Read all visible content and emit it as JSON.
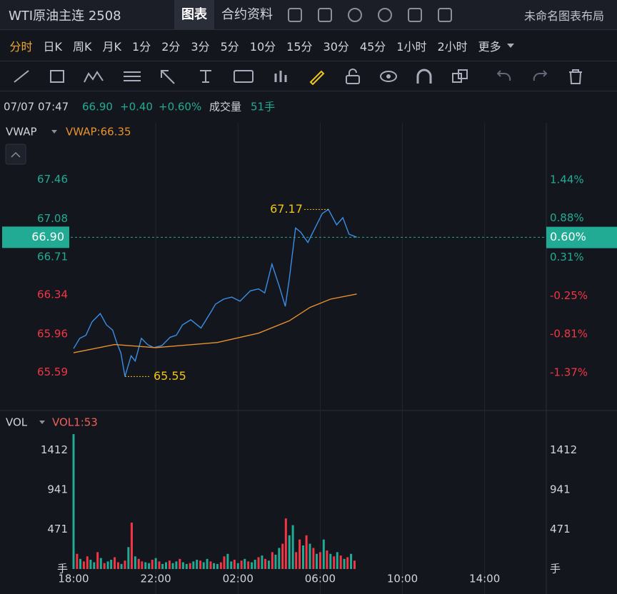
{
  "header": {
    "symbol": "WTI原油主连 2508",
    "tabs": [
      "图表",
      "合约资料"
    ],
    "layout": "未命名图表布局"
  },
  "intervals": [
    "分时",
    "日K",
    "周K",
    "月K",
    "1分",
    "2分",
    "3分",
    "5分",
    "10分",
    "15分",
    "30分",
    "45分",
    "1小时",
    "2小时"
  ],
  "more": "更多",
  "info": {
    "time": "07/07 07:47",
    "price": "66.90",
    "change": "+0.40",
    "change_pct": "+0.60%",
    "volume_label": "成交量",
    "volume": "51手"
  },
  "chart_data": [
    {
      "type": "line",
      "xlim": [
        0,
        23
      ],
      "xticks": [
        {
          "value": 0,
          "label": "18:00"
        },
        {
          "value": 4,
          "label": "22:00"
        },
        {
          "value": 8,
          "label": "02:00"
        },
        {
          "value": 12,
          "label": "06:00"
        },
        {
          "value": 16,
          "label": "10:00"
        },
        {
          "value": 20,
          "label": "14:00"
        }
      ],
      "ylim": [
        65.22,
        68.01
      ],
      "yticks": [
        67.46,
        67.08,
        66.71,
        66.34,
        65.96,
        65.59
      ],
      "ytick_colors": [
        "#22ab94",
        "#22ab94",
        "#22ab94",
        "#f23645",
        "#f23645",
        "#f23645"
      ],
      "y2lim": [
        -1.92,
        2.27
      ],
      "y2ticks": [
        {
          "value": 1.44,
          "label": "1.44%"
        },
        {
          "value": 0.88,
          "label": "0.88%"
        },
        {
          "value": 0.31,
          "label": "0.31%"
        },
        {
          "value": -0.25,
          "label": "-0.25%"
        },
        {
          "value": -0.81,
          "label": "-0.81%"
        },
        {
          "value": -1.37,
          "label": "-1.37%"
        }
      ],
      "last": {
        "value": 66.9,
        "label": "66.90"
      },
      "last_pct": {
        "value": 0.6,
        "label": "0.60%"
      },
      "max": {
        "x": 12.4,
        "value": 67.17
      },
      "min": {
        "x": 2.5,
        "value": 65.55
      },
      "series": [
        {
          "name": "Price",
          "color": "#3a8ee6",
          "x": [
            0,
            0.3,
            0.6,
            0.9,
            1.3,
            1.6,
            1.9,
            2.1,
            2.3,
            2.5,
            2.8,
            3.0,
            3.3,
            3.6,
            3.9,
            4.3,
            4.7,
            5.0,
            5.3,
            5.7,
            6.2,
            6.7,
            6.9,
            7.3,
            7.7,
            8.1,
            8.6,
            9.0,
            9.3,
            9.65,
            10.0,
            10.3,
            10.5,
            10.8,
            11.05,
            11.4,
            11.75,
            12.1,
            12.4,
            12.8,
            13.1,
            13.4,
            13.78
          ],
          "values": [
            65.82,
            65.92,
            65.95,
            66.08,
            66.16,
            66.05,
            66.0,
            65.88,
            65.78,
            65.55,
            65.75,
            65.7,
            65.92,
            65.86,
            65.83,
            65.85,
            65.93,
            65.95,
            66.05,
            66.1,
            66.02,
            66.18,
            66.25,
            66.3,
            66.32,
            66.28,
            66.38,
            66.4,
            66.36,
            66.64,
            66.43,
            66.23,
            66.5,
            66.99,
            66.95,
            66.85,
            66.99,
            67.13,
            67.17,
            67.02,
            67.09,
            66.93,
            66.9
          ]
        },
        {
          "name": "VWAP",
          "color": "#e8922e",
          "x": [
            0,
            2,
            4,
            7,
            9,
            10.5,
            11.5,
            12.5,
            13.78
          ],
          "values": [
            65.78,
            65.86,
            65.83,
            65.88,
            65.97,
            66.09,
            66.22,
            66.3,
            66.35
          ]
        }
      ],
      "legend_value": {
        "value": 66.35,
        "label": "VWAP:66.35"
      }
    },
    {
      "type": "bar",
      "name": "VOL",
      "legend_value": {
        "value": 53,
        "label": "VOL1:53"
      },
      "unit": "手",
      "ylim": [
        0,
        1880
      ],
      "yticks": [
        1412,
        941,
        471
      ],
      "xlim": [
        0,
        23
      ],
      "x": [
        0,
        0.17,
        0.33,
        0.5,
        0.67,
        0.83,
        1,
        1.17,
        1.33,
        1.5,
        1.67,
        1.83,
        2,
        2.17,
        2.33,
        2.5,
        2.67,
        2.83,
        3,
        3.17,
        3.33,
        3.5,
        3.67,
        3.83,
        4,
        4.17,
        4.33,
        4.5,
        4.67,
        4.83,
        5,
        5.17,
        5.33,
        5.5,
        5.67,
        5.83,
        6,
        6.17,
        6.33,
        6.5,
        6.67,
        6.83,
        7,
        7.17,
        7.33,
        7.5,
        7.67,
        7.83,
        8,
        8.17,
        8.33,
        8.5,
        8.67,
        8.83,
        9,
        9.17,
        9.33,
        9.5,
        9.67,
        9.83,
        10,
        10.17,
        10.33,
        10.5,
        10.67,
        10.83,
        11,
        11.17,
        11.33,
        11.5,
        11.67,
        11.83,
        12,
        12.17,
        12.33,
        12.5,
        12.67,
        12.83,
        13,
        13.17,
        13.33,
        13.5,
        13.67
      ],
      "values": [
        1600,
        180,
        120,
        90,
        150,
        110,
        80,
        200,
        130,
        70,
        90,
        110,
        140,
        80,
        60,
        100,
        260,
        550,
        150,
        120,
        90,
        80,
        70,
        110,
        130,
        90,
        60,
        80,
        100,
        70,
        90,
        120,
        80,
        60,
        70,
        90,
        110,
        100,
        80,
        120,
        90,
        70,
        60,
        80,
        150,
        180,
        90,
        110,
        70,
        100,
        120,
        90,
        80,
        110,
        140,
        160,
        120,
        100,
        200,
        170,
        250,
        300,
        600,
        400,
        520,
        200,
        350,
        280,
        400,
        300,
        250,
        180,
        200,
        350,
        220,
        180,
        150,
        200,
        160,
        120,
        140,
        180,
        100
      ],
      "colors": [
        "#22ab94",
        "#f23645",
        "#22ab94",
        "#f23645",
        "#f23645",
        "#22ab94",
        "#22ab94",
        "#f23645",
        "#22ab94",
        "#f23645",
        "#22ab94",
        "#22ab94",
        "#f23645",
        "#f23645",
        "#22ab94",
        "#f23645",
        "#22ab94",
        "#f23645",
        "#22ab94",
        "#f23645",
        "#f23645",
        "#22ab94",
        "#22ab94",
        "#f23645",
        "#22ab94",
        "#f23645",
        "#22ab94",
        "#22ab94",
        "#f23645",
        "#22ab94",
        "#22ab94",
        "#f23645",
        "#22ab94",
        "#22ab94",
        "#f23645",
        "#22ab94",
        "#22ab94",
        "#f23645",
        "#22ab94",
        "#22ab94",
        "#f23645",
        "#22ab94",
        "#22ab94",
        "#f23645",
        "#f23645",
        "#22ab94",
        "#22ab94",
        "#f23645",
        "#22ab94",
        "#f23645",
        "#22ab94",
        "#f23645",
        "#22ab94",
        "#22ab94",
        "#f23645",
        "#22ab94",
        "#f23645",
        "#22ab94",
        "#f23645",
        "#22ab94",
        "#22ab94",
        "#f23645",
        "#f23645",
        "#22ab94",
        "#22ab94",
        "#f23645",
        "#f23645",
        "#22ab94",
        "#f23645",
        "#22ab94",
        "#f23645",
        "#22ab94",
        "#f23645",
        "#22ab94",
        "#f23645",
        "#22ab94",
        "#f23645",
        "#22ab94",
        "#f23645",
        "#22ab94",
        "#f23645",
        "#22ab94",
        "#f23645"
      ]
    }
  ]
}
